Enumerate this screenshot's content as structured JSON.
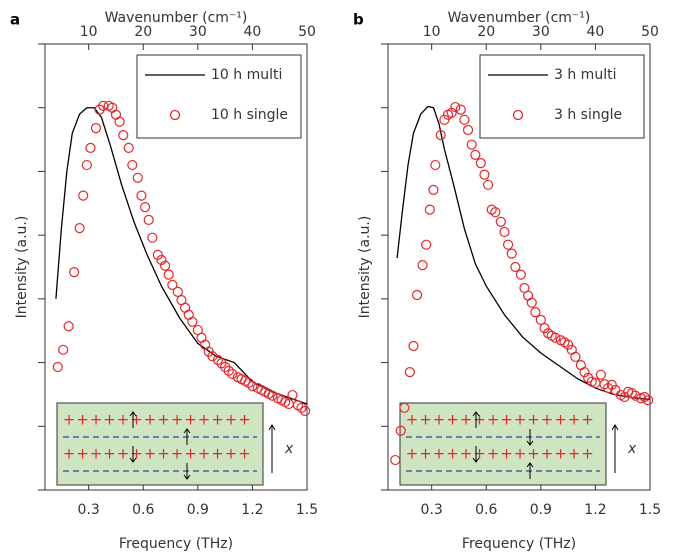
{
  "chart_data": [
    {
      "type": "line",
      "panel": "a",
      "xlabel": "Frequency (THz)",
      "x2label": "Wavenumber (cm⁻¹)",
      "ylabel": "Intensity (a.u.)",
      "inset_label": "x",
      "xlim": [
        0.06,
        1.5
      ],
      "xticks": [
        0.3,
        0.6,
        0.9,
        1.2,
        1.5
      ],
      "x2lim": [
        2,
        50
      ],
      "x2ticks": [
        10,
        20,
        30,
        40,
        50
      ],
      "ylim": [
        0,
        7
      ],
      "yticks": [
        0,
        1,
        2,
        3,
        4,
        5,
        6,
        7
      ],
      "series": [
        {
          "name": "10 h multi",
          "mode": "line",
          "color": "#000000",
          "x": [
            0.12,
            0.15,
            0.18,
            0.21,
            0.25,
            0.29,
            0.33,
            0.37,
            0.42,
            0.48,
            0.55,
            0.62,
            0.7,
            0.8,
            0.9,
            1.0,
            1.1,
            1.2,
            1.3,
            1.4,
            1.5
          ],
          "values": [
            3.0,
            4.1,
            5.0,
            5.6,
            5.9,
            6.0,
            6.0,
            5.85,
            5.4,
            4.8,
            4.2,
            3.7,
            3.2,
            2.7,
            2.3,
            2.1,
            2.0,
            1.7,
            1.55,
            1.45,
            1.35
          ]
        },
        {
          "name": "10 h single",
          "mode": "scatter",
          "color": "#e8262a",
          "x": [
            0.13,
            0.16,
            0.19,
            0.22,
            0.25,
            0.27,
            0.29,
            0.31,
            0.34,
            0.36,
            0.38,
            0.41,
            0.43,
            0.45,
            0.47,
            0.49,
            0.52,
            0.54,
            0.57,
            0.59,
            0.61,
            0.63,
            0.65,
            0.68,
            0.7,
            0.72,
            0.74,
            0.76,
            0.79,
            0.81,
            0.83,
            0.85,
            0.87,
            0.9,
            0.92,
            0.94,
            0.96,
            0.98,
            1.01,
            1.03,
            1.05,
            1.07,
            1.09,
            1.12,
            1.14,
            1.16,
            1.18,
            1.2,
            1.23,
            1.25,
            1.27,
            1.29,
            1.31,
            1.34,
            1.36,
            1.38,
            1.4,
            1.42,
            1.45,
            1.47,
            1.49
          ],
          "values": [
            1.93,
            2.2,
            2.57,
            3.42,
            4.11,
            4.62,
            5.1,
            5.37,
            5.68,
            5.97,
            6.03,
            6.03,
            6.0,
            5.89,
            5.78,
            5.57,
            5.37,
            5.1,
            4.9,
            4.62,
            4.44,
            4.24,
            3.96,
            3.69,
            3.61,
            3.52,
            3.38,
            3.22,
            3.11,
            2.98,
            2.86,
            2.75,
            2.64,
            2.51,
            2.39,
            2.28,
            2.17,
            2.1,
            2.04,
            1.99,
            1.93,
            1.87,
            1.82,
            1.77,
            1.74,
            1.71,
            1.68,
            1.63,
            1.6,
            1.57,
            1.54,
            1.51,
            1.48,
            1.44,
            1.41,
            1.38,
            1.35,
            1.49,
            1.33,
            1.29,
            1.24
          ]
        }
      ]
    },
    {
      "type": "line",
      "panel": "b",
      "xlabel": "Frequency (THz)",
      "x2label": "Wavenumber (cm⁻¹)",
      "ylabel": "Intensity (a.u.)",
      "inset_label": "x",
      "xlim": [
        0.06,
        1.5
      ],
      "xticks": [
        0.3,
        0.6,
        0.9,
        1.2,
        1.5
      ],
      "x2lim": [
        2,
        50
      ],
      "x2ticks": [
        10,
        20,
        30,
        40,
        50
      ],
      "ylim": [
        0,
        7
      ],
      "yticks": [
        0,
        1,
        2,
        3,
        4,
        5,
        6,
        7
      ],
      "series": [
        {
          "name": "3 h multi",
          "mode": "line",
          "color": "#000000",
          "x": [
            0.11,
            0.14,
            0.17,
            0.2,
            0.24,
            0.28,
            0.31,
            0.34,
            0.37,
            0.42,
            0.48,
            0.54,
            0.6,
            0.7,
            0.8,
            0.9,
            1.0,
            1.1,
            1.2,
            1.3,
            1.4,
            1.5
          ],
          "values": [
            3.64,
            4.4,
            5.1,
            5.6,
            5.9,
            6.02,
            6.0,
            5.75,
            5.35,
            4.8,
            4.1,
            3.55,
            3.2,
            2.75,
            2.4,
            2.15,
            1.95,
            1.75,
            1.6,
            1.5,
            1.45,
            1.42
          ]
        },
        {
          "name": "3 h single",
          "mode": "scatter",
          "color": "#e8262a",
          "x": [
            0.1,
            0.13,
            0.15,
            0.18,
            0.2,
            0.22,
            0.25,
            0.27,
            0.29,
            0.31,
            0.32,
            0.35,
            0.37,
            0.39,
            0.41,
            0.43,
            0.46,
            0.48,
            0.5,
            0.52,
            0.54,
            0.57,
            0.59,
            0.61,
            0.63,
            0.65,
            0.68,
            0.7,
            0.72,
            0.74,
            0.76,
            0.79,
            0.81,
            0.83,
            0.85,
            0.87,
            0.9,
            0.92,
            0.94,
            0.96,
            0.98,
            1.01,
            1.03,
            1.05,
            1.07,
            1.09,
            1.12,
            1.14,
            1.16,
            1.18,
            1.2,
            1.23,
            1.25,
            1.27,
            1.29,
            1.31,
            1.34,
            1.36,
            1.38,
            1.4,
            1.42,
            1.45,
            1.47,
            1.49
          ],
          "values": [
            0.47,
            0.93,
            1.29,
            1.85,
            2.26,
            3.06,
            3.53,
            3.85,
            4.4,
            4.71,
            5.1,
            5.57,
            5.81,
            5.89,
            5.92,
            6.01,
            5.97,
            5.81,
            5.65,
            5.42,
            5.26,
            5.13,
            4.95,
            4.79,
            4.4,
            4.36,
            4.21,
            4.05,
            3.85,
            3.71,
            3.5,
            3.38,
            3.17,
            3.05,
            2.94,
            2.79,
            2.67,
            2.54,
            2.46,
            2.42,
            2.39,
            2.35,
            2.32,
            2.28,
            2.2,
            2.09,
            1.96,
            1.85,
            1.76,
            1.7,
            1.68,
            1.81,
            1.66,
            1.6,
            1.65,
            1.57,
            1.49,
            1.46,
            1.54,
            1.52,
            1.48,
            1.44,
            1.46,
            1.41
          ]
        }
      ]
    }
  ]
}
